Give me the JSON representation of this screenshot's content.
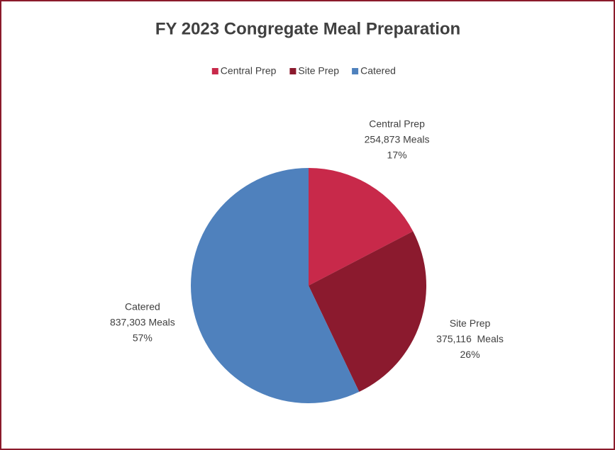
{
  "chart_data": {
    "type": "pie",
    "title": "FY 2023 Congregate Meal Preparation",
    "categories": [
      "Central Prep",
      "Site Prep",
      "Catered"
    ],
    "values": [
      254873,
      375116,
      837303
    ],
    "value_labels": [
      "254,873 Meals",
      "375,116  Meals",
      "837,303 Meals"
    ],
    "percent_labels": [
      "17%",
      "26%",
      "57%"
    ],
    "colors": [
      "#c8294a",
      "#8b1a2e",
      "#4f81bd"
    ],
    "legend": "top"
  }
}
